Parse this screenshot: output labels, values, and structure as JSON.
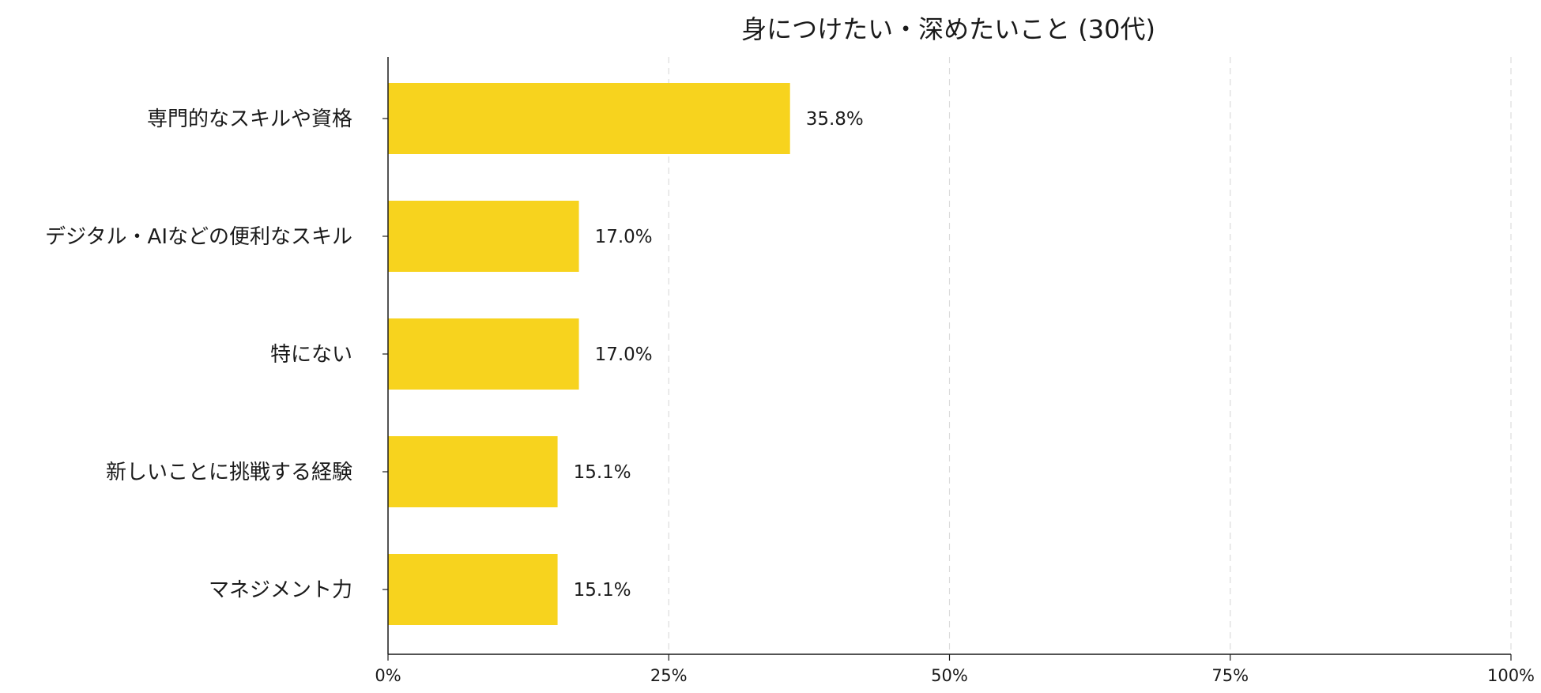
{
  "chart_data": {
    "type": "bar",
    "orientation": "horizontal",
    "title": "身につけたい・深めたいこと (30代)",
    "xlabel": "",
    "ylabel": "",
    "categories": [
      "専門的なスキルや資格",
      "デジタル・AIなどの便利なスキル",
      "特にない",
      "新しいことに挑戦する経験",
      "マネジメント力"
    ],
    "values": [
      35.8,
      17.0,
      17.0,
      15.1,
      15.1
    ],
    "value_labels": [
      "35.8%",
      "17.0%",
      "17.0%",
      "15.1%",
      "15.1%"
    ],
    "xlim": [
      0,
      100
    ],
    "x_ticks": [
      0,
      25,
      50,
      75,
      100
    ],
    "x_tick_labels": [
      "0%",
      "25%",
      "50%",
      "75%",
      "100%"
    ],
    "grid": "vertical dashed",
    "legend": "none",
    "bar_color": "#F7D31E"
  }
}
